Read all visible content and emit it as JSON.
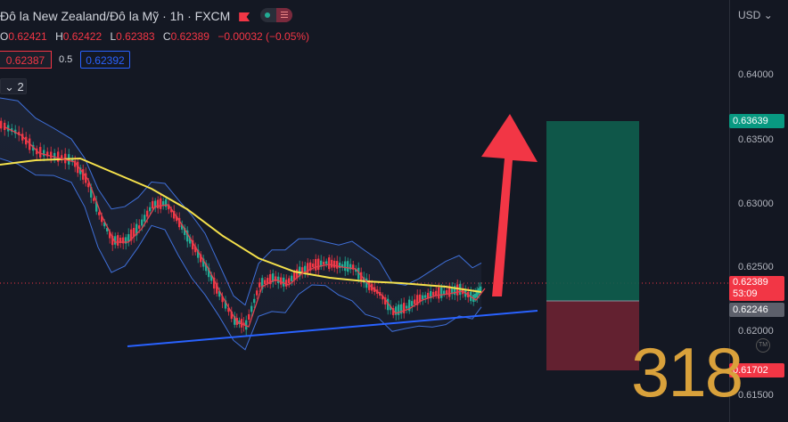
{
  "header": {
    "symbol_title": "Đô la New Zealand/Đô la Mỹ · 1h · FXCM",
    "ohlc": [
      {
        "label": "O",
        "value": "0.62421"
      },
      {
        "label": "H",
        "value": "0.62422"
      },
      {
        "label": "L",
        "value": "0.62383"
      },
      {
        "label": "C",
        "value": "0.62389"
      }
    ],
    "change": "−0.00032 (−0.05%)"
  },
  "trade": {
    "sell_price": "0.62387",
    "spread": "0.5",
    "buy_price": "0.62392"
  },
  "indicators": {
    "collapse_label": "2"
  },
  "price_axis": {
    "currency": "USD",
    "ticks": [
      "0.64000",
      "0.63500",
      "0.63000",
      "0.62500",
      "0.62000",
      "0.61500"
    ],
    "take_profit": "0.63639",
    "current_price": "0.62389",
    "countdown": "53:09",
    "entry": "0.62246",
    "stop_loss": "0.61702"
  },
  "watermark": {
    "text": "318",
    "tm": "TM"
  },
  "colors": {
    "up": "#22ab94",
    "down": "#f23645",
    "trendline": "#2962ff",
    "ma": "#f5e14b",
    "profit_zone": "#0e5e4e",
    "loss_zone": "#6b2232"
  }
}
